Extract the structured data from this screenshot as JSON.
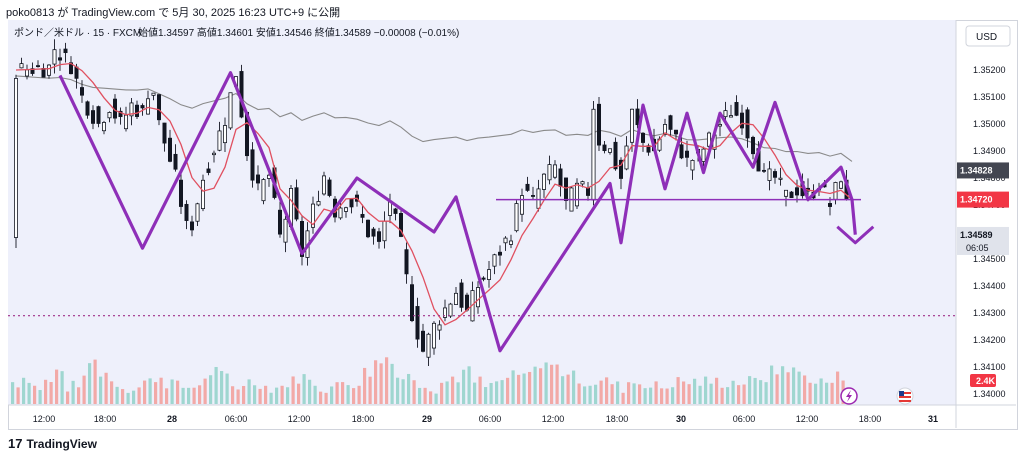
{
  "header": {
    "text": "poko0813 が TradingView.com で 5月 30, 2025 16:23 UTC+9 に公開"
  },
  "legend": {
    "symbol": "ポンド／米ドル · 15 · FXCM",
    "ohlc": "始値1.34597  高値1.34601  安値1.34546  終値1.34589  −0.00008 (−0.01%)"
  },
  "currency_button": "USD",
  "footer": {
    "logo_mark": "17",
    "logo_text": "TradingView"
  },
  "colors": {
    "plot_bg": "#eef0fb",
    "up": "#26a69a",
    "down": "#ef5350",
    "ma_fast": "#e05060",
    "ma_slow": "#8a8a8a",
    "pattern": "#8e2fb8",
    "hline": "#8e2fb8",
    "dotted": "#a0308a"
  },
  "chart_data": {
    "type": "candlestick",
    "y_axis": {
      "ticks": [
        "1.35200",
        "1.35100",
        "1.35000",
        "1.34900",
        "1.34800",
        "1.34700",
        "1.34600",
        "1.34500",
        "1.34400",
        "1.34300",
        "1.34200",
        "1.34100",
        "1.34000"
      ],
      "min": 1.3399,
      "max": 1.3534
    },
    "x_axis": {
      "ticks": [
        "12:00",
        "18:00",
        "28",
        "06:00",
        "12:00",
        "18:00",
        "29",
        "06:00",
        "12:00",
        "18:00",
        "30",
        "06:00",
        "12:00",
        "18:00",
        "31"
      ]
    },
    "price_labels": [
      {
        "value": 1.34828,
        "text": "1.34828",
        "style": "gray"
      },
      {
        "value": 1.3472,
        "text": "1.34720",
        "style": "red"
      },
      {
        "value": 1.34589,
        "text": "1.34589",
        "sub": "06:05",
        "style": "current"
      }
    ],
    "volume_label": "2.4K",
    "horizontal_line": 1.3472,
    "dotted_line": 1.3429,
    "pattern_path": [
      [
        4,
        1.3518
      ],
      [
        11.5,
        1.3454
      ],
      [
        19.5,
        1.3519
      ],
      [
        26,
        1.3452
      ],
      [
        31,
        1.348
      ],
      [
        38,
        1.346
      ],
      [
        40,
        1.3473
      ],
      [
        44,
        1.3416
      ],
      [
        54,
        1.3478
      ],
      [
        55,
        1.3456
      ],
      [
        57,
        1.3507
      ],
      [
        59,
        1.3476
      ],
      [
        61,
        1.3504
      ],
      [
        62.5,
        1.3482
      ],
      [
        64,
        1.3504
      ],
      [
        67,
        1.3484
      ],
      [
        69,
        1.3508
      ],
      [
        72,
        1.3472
      ],
      [
        75,
        1.3484
      ],
      [
        76,
        1.3472
      ],
      [
        76.3,
        1.3459
      ]
    ],
    "arrow_tip": [
      76.3,
      1.3456
    ],
    "anchors": [
      [
        0,
        1.352
      ],
      [
        3,
        1.3521
      ],
      [
        3.5,
        1.3528
      ],
      [
        5,
        1.3522
      ],
      [
        6,
        1.351
      ],
      [
        7.5,
        1.35
      ],
      [
        8.5,
        1.3507
      ],
      [
        9.5,
        1.35
      ],
      [
        10.5,
        1.3507
      ],
      [
        11.5,
        1.3504
      ],
      [
        12.3,
        1.3517
      ],
      [
        13,
        1.35
      ],
      [
        14.5,
        1.348
      ],
      [
        15.7,
        1.3458
      ],
      [
        17,
        1.348
      ],
      [
        19,
        1.3502
      ],
      [
        20,
        1.3519
      ],
      [
        21,
        1.349
      ],
      [
        22,
        1.3475
      ],
      [
        23,
        1.3481
      ],
      [
        24,
        1.3458
      ],
      [
        25,
        1.3473
      ],
      [
        26,
        1.3452
      ],
      [
        27,
        1.3468
      ],
      [
        28,
        1.3481
      ],
      [
        29,
        1.3468
      ],
      [
        30,
        1.3472
      ],
      [
        31,
        1.3469
      ],
      [
        32,
        1.346
      ],
      [
        33,
        1.3455
      ],
      [
        34,
        1.3472
      ],
      [
        35,
        1.3455
      ],
      [
        36,
        1.343
      ],
      [
        37,
        1.3416
      ],
      [
        38,
        1.3425
      ],
      [
        40,
        1.3438
      ],
      [
        41,
        1.343
      ],
      [
        42,
        1.344
      ],
      [
        43,
        1.3446
      ],
      [
        45,
        1.346
      ],
      [
        46,
        1.3476
      ],
      [
        47,
        1.3471
      ],
      [
        48,
        1.348
      ],
      [
        49,
        1.3484
      ],
      [
        50,
        1.347
      ],
      [
        51,
        1.3476
      ],
      [
        52,
        1.3475
      ],
      [
        52.5,
        1.3507
      ],
      [
        53,
        1.3494
      ],
      [
        54,
        1.349
      ],
      [
        55,
        1.348
      ],
      [
        56,
        1.3504
      ],
      [
        57,
        1.3493
      ],
      [
        58,
        1.349
      ],
      [
        59,
        1.35
      ],
      [
        60,
        1.3494
      ],
      [
        61,
        1.3486
      ],
      [
        62,
        1.3488
      ],
      [
        63,
        1.3494
      ],
      [
        64,
        1.35
      ],
      [
        65,
        1.3505
      ],
      [
        66,
        1.3502
      ],
      [
        67,
        1.3492
      ],
      [
        68,
        1.348
      ],
      [
        69,
        1.348
      ],
      [
        70,
        1.3473
      ],
      [
        71,
        1.3476
      ],
      [
        72,
        1.3473
      ],
      [
        73,
        1.3478
      ],
      [
        74,
        1.347
      ],
      [
        75,
        1.3481
      ],
      [
        76,
        1.3459
      ]
    ],
    "volume_profile": [
      3,
      4,
      2,
      3,
      5,
      2,
      3,
      7,
      5,
      3,
      2,
      2,
      3,
      4,
      3,
      2,
      2,
      3,
      5,
      4,
      2,
      3,
      3,
      2,
      2,
      3,
      4,
      3,
      2,
      2,
      3,
      3,
      5,
      7,
      8,
      4,
      4,
      3,
      2,
      3,
      4,
      5,
      3,
      2,
      3,
      4,
      4,
      5,
      7,
      6,
      5,
      4,
      3,
      3,
      3,
      2,
      3,
      3,
      2,
      2,
      3,
      3,
      3,
      3,
      3,
      3,
      3,
      3,
      4,
      5,
      6,
      5,
      4,
      3
    ]
  }
}
